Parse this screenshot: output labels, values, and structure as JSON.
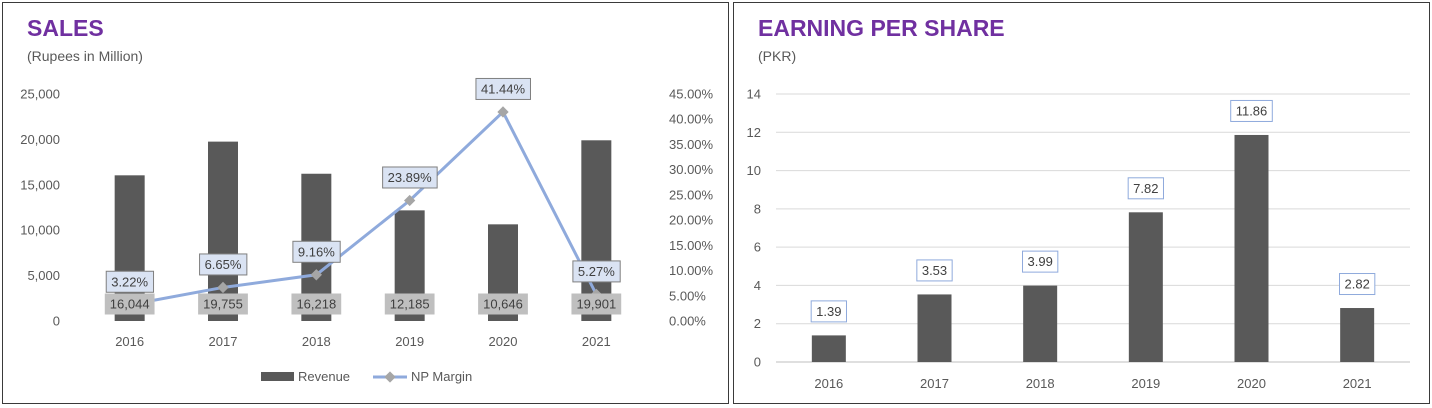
{
  "chart_data": [
    {
      "type": "bar",
      "title": "SALES",
      "subtitle": "(Rupees in Million)",
      "categories": [
        "2016",
        "2017",
        "2018",
        "2019",
        "2020",
        "2021"
      ],
      "series": [
        {
          "name": "Revenue",
          "type": "bar",
          "axis": "left",
          "values": [
            16044,
            19755,
            16218,
            12185,
            10646,
            19901
          ],
          "labels": [
            "16,044",
            "19,755",
            "16,218",
            "12,185",
            "10,646",
            "19,901"
          ],
          "color": "#595959"
        },
        {
          "name": "NP Margin",
          "type": "line",
          "axis": "right",
          "values": [
            3.22,
            6.65,
            9.16,
            23.89,
            41.44,
            5.27
          ],
          "labels": [
            "3.22%",
            "6.65%",
            "9.16%",
            "23.89%",
            "41.44%",
            "5.27%"
          ],
          "color": "#8faadc"
        }
      ],
      "ylim": [
        0,
        25000
      ],
      "yticks": [
        "0",
        "5,000",
        "10,000",
        "15,000",
        "20,000",
        "25,000"
      ],
      "y2lim": [
        0,
        45
      ],
      "y2ticks": [
        "0.00%",
        "5.00%",
        "10.00%",
        "15.00%",
        "20.00%",
        "25.00%",
        "30.00%",
        "35.00%",
        "40.00%",
        "45.00%"
      ],
      "grid": false,
      "legend": "bottom"
    },
    {
      "type": "bar",
      "title": "EARNING PER SHARE",
      "subtitle": "(PKR)",
      "categories": [
        "2016",
        "2017",
        "2018",
        "2019",
        "2020",
        "2021"
      ],
      "series": [
        {
          "name": "",
          "values": [
            1.39,
            3.53,
            3.99,
            7.82,
            11.86,
            2.82
          ],
          "labels": [
            "1.39",
            "3.53",
            "3.99",
            "7.82",
            "11.86",
            "2.82"
          ],
          "color": "#595959"
        }
      ],
      "ylim": [
        0,
        14
      ],
      "yticks": [
        "0",
        "2",
        "4",
        "6",
        "8",
        "10",
        "12",
        "14"
      ],
      "grid": true,
      "legend": "none"
    }
  ],
  "colors": {
    "title": "#7030a0",
    "bar": "#595959",
    "line": "#8faadc",
    "label_box_fill": "#dae3f3",
    "bar_label_fill": "#bfbfbf"
  }
}
